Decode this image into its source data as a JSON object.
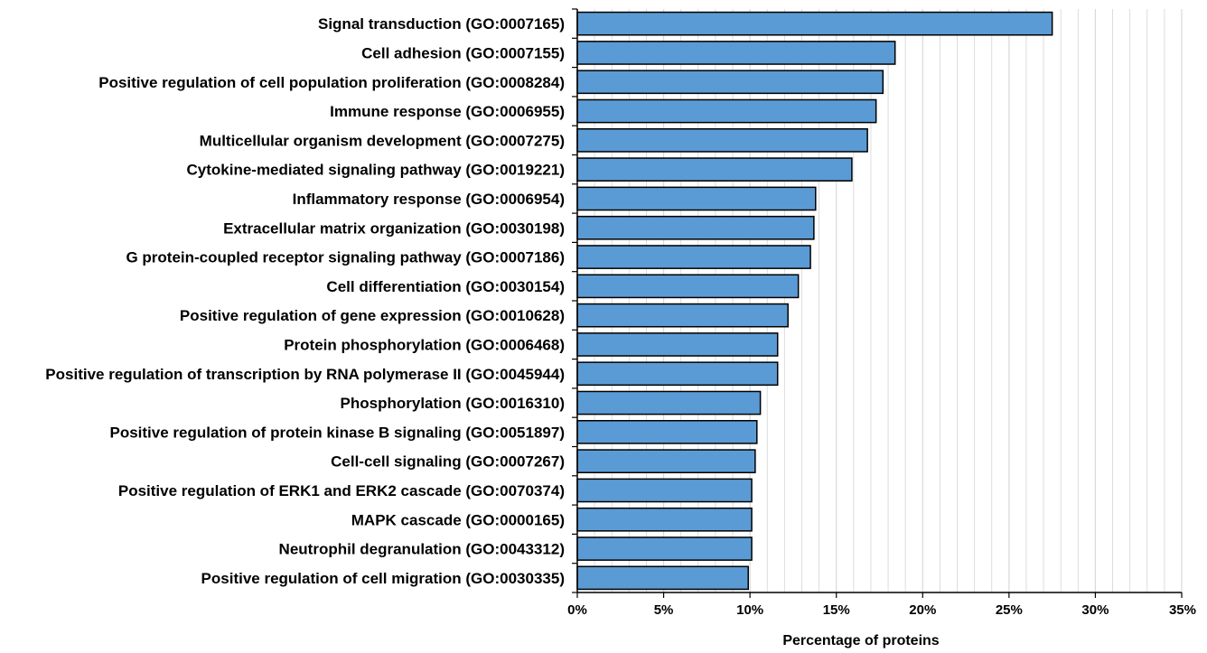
{
  "chart_data": {
    "type": "bar",
    "orientation": "horizontal",
    "title": "",
    "xlabel": "Percentage of proteins",
    "ylabel": "",
    "categories": [
      "Signal transduction (GO:0007165)",
      "Cell adhesion (GO:0007155)",
      "Positive regulation of cell population proliferation (GO:0008284)",
      "Immune response (GO:0006955)",
      "Multicellular organism development (GO:0007275)",
      "Cytokine-mediated signaling pathway (GO:0019221)",
      "Inflammatory response (GO:0006954)",
      "Extracellular matrix organization (GO:0030198)",
      "G protein-coupled receptor signaling pathway (GO:0007186)",
      "Cell differentiation (GO:0030154)",
      "Positive regulation of gene expression (GO:0010628)",
      "Protein phosphorylation (GO:0006468)",
      "Positive regulation of transcription by RNA polymerase II (GO:0045944)",
      "Phosphorylation (GO:0016310)",
      "Positive regulation of protein kinase B signaling (GO:0051897)",
      "Cell-cell signaling (GO:0007267)",
      "Positive regulation of ERK1 and ERK2 cascade (GO:0070374)",
      "MAPK cascade (GO:0000165)",
      "Neutrophil degranulation (GO:0043312)",
      "Positive regulation of cell migration (GO:0030335)"
    ],
    "values": [
      27.5,
      18.4,
      17.7,
      17.3,
      16.8,
      15.9,
      13.8,
      13.7,
      13.5,
      12.8,
      12.2,
      11.6,
      11.6,
      10.6,
      10.4,
      10.3,
      10.1,
      10.1,
      10.1,
      9.9
    ],
    "xlim": [
      0,
      35
    ],
    "xticks": [
      "0%",
      "5%",
      "10%",
      "15%",
      "20%",
      "25%",
      "30%",
      "35%"
    ],
    "grid": "vertical",
    "legend": "none",
    "colors": {
      "bar_fill": "#5b9bd5",
      "bar_stroke": "#000000",
      "grid": "#d9d9d9"
    }
  }
}
